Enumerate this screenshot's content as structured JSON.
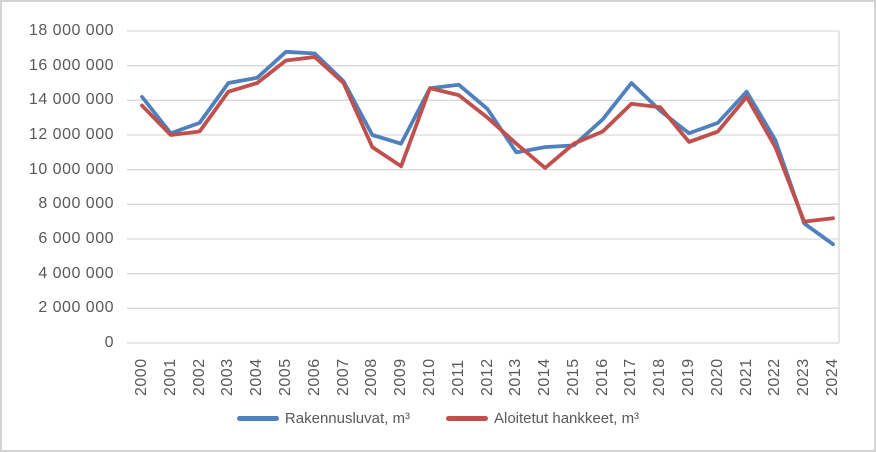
{
  "chart_data": {
    "type": "line",
    "title": "",
    "x": [
      2000,
      2001,
      2002,
      2003,
      2004,
      2005,
      2006,
      2007,
      2008,
      2009,
      2010,
      2011,
      2012,
      2013,
      2014,
      2015,
      2016,
      2017,
      2018,
      2019,
      2020,
      2021,
      2022,
      2023,
      2024
    ],
    "series": [
      {
        "name": "Rakennusluvat, m³",
        "color": "#4F81BD",
        "values": [
          14200000,
          12100000,
          12700000,
          15000000,
          15300000,
          16800000,
          16700000,
          15100000,
          12000000,
          11500000,
          14700000,
          14900000,
          13500000,
          11000000,
          11300000,
          11400000,
          12900000,
          15000000,
          13400000,
          12100000,
          12700000,
          14500000,
          11700000,
          6900000,
          5700000
        ]
      },
      {
        "name": "Aloitetut hankkeet, m³",
        "color": "#C0504D",
        "values": [
          13700000,
          12000000,
          12200000,
          14500000,
          15000000,
          16300000,
          16500000,
          15000000,
          11300000,
          10200000,
          14700000,
          14300000,
          13000000,
          11500000,
          10100000,
          11500000,
          12200000,
          13800000,
          13600000,
          11600000,
          12200000,
          14200000,
          11300000,
          7000000,
          7200000
        ]
      }
    ],
    "ylim": [
      0,
      18000000
    ],
    "ytick_step": 2000000,
    "ytick_labels": [
      "0",
      "2 000 000",
      "4 000 000",
      "6 000 000",
      "8 000 000",
      "10 000 000",
      "12 000 000",
      "14 000 000",
      "16 000 000",
      "18 000 000"
    ],
    "xlabel": "",
    "ylabel": "",
    "grid": true,
    "legend_position": "bottom",
    "colors": {
      "gridline": "#D9D9D9",
      "axis_text": "#595959",
      "frame_border": "#D3D3D3",
      "background": "#FFFFFF"
    }
  }
}
